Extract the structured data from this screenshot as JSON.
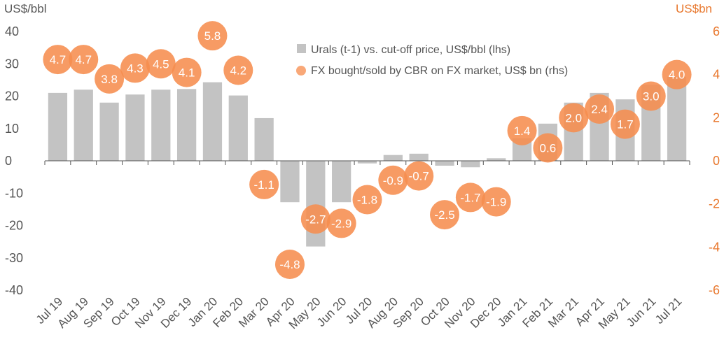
{
  "chart_data": {
    "type": "bar",
    "left_unit": "US$/bbl",
    "right_unit": "US$bn",
    "categories": [
      "Jul 19",
      "Aug 19",
      "Sep 19",
      "Oct 19",
      "Nov 19",
      "Dec 19",
      "Jan 20",
      "Feb 20",
      "Mar 20",
      "Apr 20",
      "May 20",
      "Jun 20",
      "Jul 20",
      "Aug 20",
      "Sep 20",
      "Oct 20",
      "Nov 20",
      "Dec 20",
      "Jan 21",
      "Feb 21",
      "Mar 21",
      "Apr 21",
      "May 21",
      "Jun 21",
      "Jul 21"
    ],
    "left_axis": {
      "min": -40,
      "max": 40,
      "ticks": [
        "40",
        "30",
        "20",
        "10",
        "0",
        "-10",
        "-20",
        "-30",
        "-40"
      ]
    },
    "right_axis": {
      "min": -6,
      "max": 6,
      "ticks": [
        "6",
        "4",
        "2",
        "0",
        "-2",
        "-4",
        "-6"
      ]
    },
    "series": [
      {
        "name": "Urals (t-1) vs. cut-off price, US$/bbl (lhs)",
        "type": "bar",
        "axis": "left",
        "color": "#c3c3c3",
        "values": [
          21,
          22,
          18,
          20.5,
          22,
          22.2,
          24.3,
          20.2,
          13.2,
          -12.8,
          -26.5,
          -12.8,
          -0.8,
          1.8,
          2.2,
          -1.5,
          -2,
          0.8,
          7,
          11.5,
          18,
          21,
          19,
          23.5,
          26
        ]
      },
      {
        "name": "FX bought/sold by CBR on FX market, US$ bn (rhs)",
        "type": "scatter",
        "axis": "right",
        "color": "#f68d4e",
        "values": [
          4.7,
          4.7,
          3.8,
          4.3,
          4.5,
          4.1,
          5.8,
          4.2,
          -1.1,
          -4.8,
          -2.7,
          -2.9,
          -1.8,
          -0.9,
          -0.7,
          -2.5,
          -1.7,
          -1.9,
          1.4,
          0.6,
          2.0,
          2.4,
          1.7,
          3.0,
          4.0
        ],
        "labels": [
          "4.7",
          "4.7",
          "3.8",
          "4.3",
          "4.5",
          "4.1",
          "5.8",
          "4.2",
          "-1.1",
          "-4.8",
          "-2.7",
          "-2.9",
          "-1.8",
          "-0.9",
          "-0.7",
          "-2.5",
          "-1.7",
          "-1.9",
          "1.4",
          "0.6",
          "2.0",
          "2.4",
          "1.7",
          "3.0",
          "4.0"
        ]
      }
    ],
    "legend_position": "top-right",
    "colors": {
      "left_axis_text": "#555555",
      "right_axis_text": "#e8762b"
    }
  }
}
